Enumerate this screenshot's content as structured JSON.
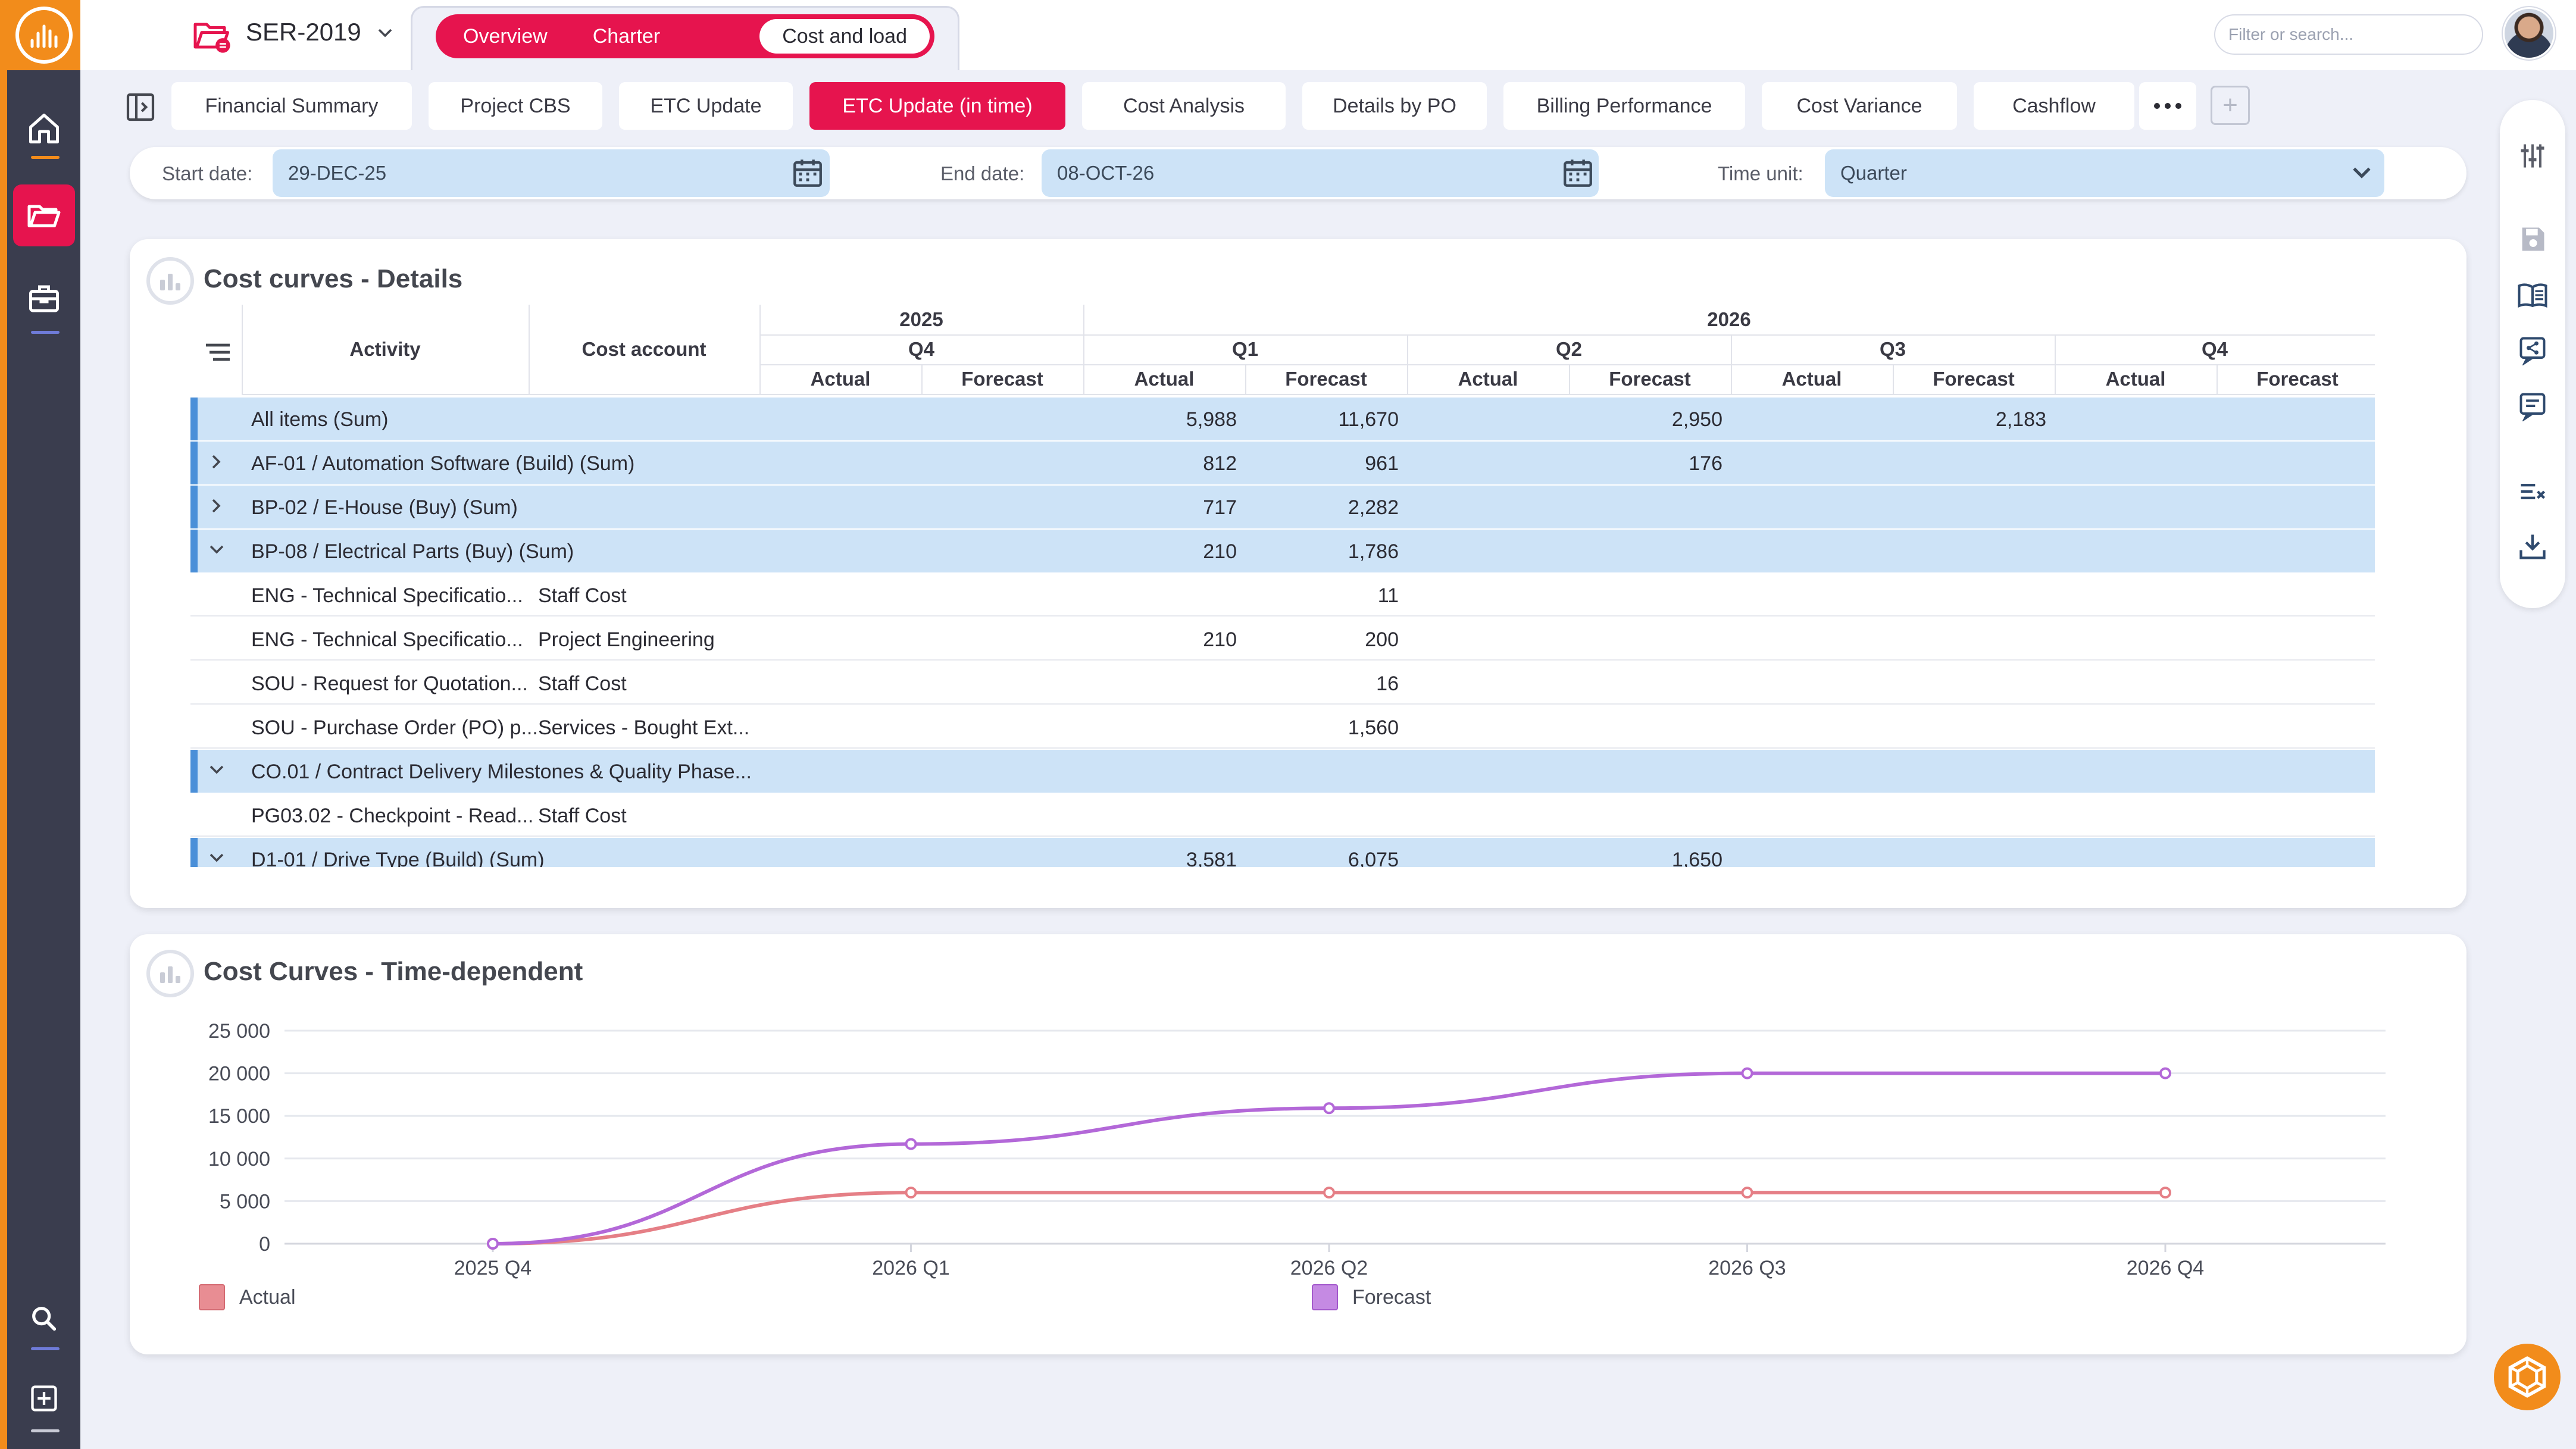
{
  "app": {
    "project_name": "SER-2019"
  },
  "top_tabs": [
    {
      "label": "Overview"
    },
    {
      "label": "Charter"
    },
    {
      "label": "Cost and load"
    }
  ],
  "search": {
    "placeholder": "Filter or search..."
  },
  "subtabs": [
    {
      "label": "Financial Summary"
    },
    {
      "label": "Project CBS"
    },
    {
      "label": "ETC Update"
    },
    {
      "label": "ETC Update (in time)"
    },
    {
      "label": "Cost Analysis"
    },
    {
      "label": "Details by PO"
    },
    {
      "label": "Billing Performance"
    },
    {
      "label": "Cost Variance"
    },
    {
      "label": "Cashflow"
    }
  ],
  "filters": {
    "start_label": "Start date:",
    "start_value": "29-DEC-25",
    "end_label": "End date:",
    "end_value": "08-OCT-26",
    "unit_label": "Time unit:",
    "unit_value": "Quarter"
  },
  "details_card": {
    "title": "Cost curves - Details",
    "headers": {
      "activity": "Activity",
      "account": "Cost account",
      "year_2025": "2025",
      "year_2026": "2026",
      "q4_2025": "Q4",
      "q1": "Q1",
      "q2": "Q2",
      "q3": "Q3",
      "q4": "Q4",
      "actual": "Actual",
      "forecast": "Forecast"
    },
    "rows": [
      {
        "type": "group",
        "expander": "",
        "label": "All items (Sum)",
        "account": "",
        "v": [
          "",
          "",
          "5,988",
          "11,670",
          "",
          "2,950",
          "",
          "2,183",
          "",
          ""
        ]
      },
      {
        "type": "group",
        "expander": "right",
        "label": "AF-01 / Automation Software (Build) (Sum)",
        "account": "",
        "v": [
          "",
          "",
          "812",
          "961",
          "",
          "176",
          "",
          "",
          "",
          ""
        ]
      },
      {
        "type": "group",
        "expander": "right",
        "label": "BP-02 / E-House (Buy) (Sum)",
        "account": "",
        "v": [
          "",
          "",
          "717",
          "2,282",
          "",
          "",
          "",
          "",
          "",
          ""
        ]
      },
      {
        "type": "group",
        "expander": "down",
        "label": "BP-08 / Electrical Parts (Buy) (Sum)",
        "account": "",
        "v": [
          "",
          "",
          "210",
          "1,786",
          "",
          "",
          "",
          "",
          "",
          ""
        ]
      },
      {
        "type": "child",
        "expander": "",
        "label": "ENG - Technical Specificatio...",
        "account": "Staff Cost",
        "v": [
          "",
          "",
          "",
          "11",
          "",
          "",
          "",
          "",
          "",
          ""
        ]
      },
      {
        "type": "child",
        "expander": "",
        "label": "ENG - Technical Specificatio...",
        "account": "Project Engineering",
        "v": [
          "",
          "",
          "210",
          "200",
          "",
          "",
          "",
          "",
          "",
          ""
        ]
      },
      {
        "type": "child",
        "expander": "",
        "label": "SOU - Request for Quotation...",
        "account": "Staff Cost",
        "v": [
          "",
          "",
          "",
          "16",
          "",
          "",
          "",
          "",
          "",
          ""
        ]
      },
      {
        "type": "child",
        "expander": "",
        "label": "SOU - Purchase Order (PO) p...",
        "account": "Services - Bought Ext...",
        "v": [
          "",
          "",
          "",
          "1,560",
          "",
          "",
          "",
          "",
          "",
          ""
        ]
      },
      {
        "type": "group",
        "expander": "down",
        "label": "CO.01 / Contract Delivery Milestones & Quality Phase...",
        "account": "",
        "v": [
          "",
          "",
          "",
          "",
          "",
          "",
          "",
          "",
          "",
          ""
        ]
      },
      {
        "type": "child",
        "expander": "",
        "label": "PG03.02 - Checkpoint - Read...",
        "account": "Staff Cost",
        "v": [
          "",
          "",
          "",
          "",
          "",
          "",
          "",
          "",
          "",
          ""
        ]
      },
      {
        "type": "group",
        "expander": "down",
        "label": "D1-01 / Drive Type (Build) (Sum)",
        "account": "",
        "v": [
          "",
          "",
          "3,581",
          "6,075",
          "",
          "1,650",
          "",
          "",
          "",
          ""
        ]
      }
    ]
  },
  "chart_card": {
    "title": "Cost Curves - Time-dependent"
  },
  "chart_data": {
    "type": "line",
    "title": "Cost Curves - Time-dependent",
    "x": [
      "2025 Q4",
      "2026 Q1",
      "2026 Q2",
      "2026 Q3",
      "2026 Q4"
    ],
    "ylim": [
      0,
      25000
    ],
    "yticks": [
      "0",
      "5 000",
      "10 000",
      "15 000",
      "20 000",
      "25 000"
    ],
    "ytick_values": [
      0,
      5000,
      10000,
      15000,
      20000,
      25000
    ],
    "grid": true,
    "legend_position": "bottom",
    "series": [
      {
        "name": "Actual",
        "color": "#e57f86",
        "values": [
          0,
          6000,
          6000,
          6000,
          6000
        ]
      },
      {
        "name": "Forecast",
        "color": "#b368d8",
        "values": [
          0,
          11700,
          15900,
          20000,
          20000
        ]
      }
    ]
  },
  "colors": {
    "accent": "#e6144e",
    "brand_orange": "#f28c1b",
    "row_highlight": "#cde3f7"
  }
}
